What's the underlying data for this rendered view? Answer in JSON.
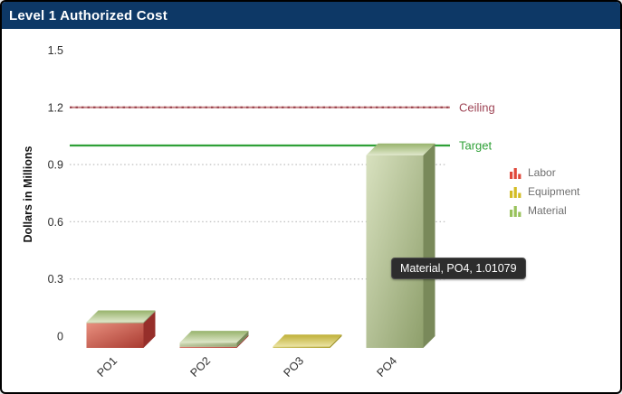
{
  "window": {
    "title": "Level 1 Authorized Cost"
  },
  "theme": {
    "header_bg": "#0D3866",
    "header_fg": "#FFFFFF",
    "background": "#FFFFFF",
    "grid_color": "#BFBFBF",
    "tick_color": "#2E2E2E",
    "axis_title_color": "#111111"
  },
  "chart_data": {
    "type": "bar",
    "subtype": "3d-stacked-column",
    "title": "Level 1 Authorized Cost",
    "xlabel": "",
    "ylabel": "Dollars in Millions",
    "categories": [
      "PO1",
      "PO2",
      "PO3",
      "PO4"
    ],
    "series": [
      {
        "name": "Labor",
        "values": [
          0.13,
          0.006,
          0,
          0
        ],
        "colors": {
          "front_light": "#E8907F",
          "front_dark": "#A93A30",
          "top_light": "#F0B0A0",
          "top_dark": "#C05A50",
          "side": "#962F2A",
          "legend": "#E0483B"
        }
      },
      {
        "name": "Equipment",
        "values": [
          0,
          0,
          0.008,
          0
        ],
        "colors": {
          "front_light": "#E4DA85",
          "front_dark": "#A89A25",
          "top_light": "#EBE3A2",
          "top_dark": "#BFB037",
          "side": "#9C8F22",
          "legend": "#D3BC24"
        }
      },
      {
        "name": "Material",
        "values": [
          0.005,
          0.022,
          0,
          1.01079
        ],
        "colors": {
          "front_light": "#D8E1BF",
          "front_dark": "#8E9F6B",
          "top_light": "#DFE7CA",
          "top_dark": "#97B36C",
          "side": "#79895A",
          "legend": "#98C25B"
        }
      }
    ],
    "ylim": [
      0,
      1.5
    ],
    "yticks": [
      0,
      0.3,
      0.6,
      0.9,
      1.2,
      1.5
    ],
    "gridlines": [
      0.3,
      0.6,
      0.9
    ],
    "grid_style": "dotted",
    "legend_position": "right",
    "reference_lines": [
      {
        "label": "Ceiling",
        "value": 1.2,
        "style": "dashed",
        "line_color": "#C9898C",
        "dash_color": "#9A4550",
        "label_color": "#9E4455"
      },
      {
        "label": "Target",
        "value": 1.0,
        "style": "solid",
        "line_color": "#2FA037",
        "dash_color": "",
        "label_color": "#2FA037"
      }
    ]
  },
  "legend": {
    "text_color": "#6F6F6F",
    "items": [
      {
        "label": "Labor",
        "color": "#E0483B"
      },
      {
        "label": "Equipment",
        "color": "#D3BC24"
      },
      {
        "label": "Material",
        "color": "#98C25B"
      }
    ]
  },
  "tooltip": {
    "text": "Material, PO4, 1.01079",
    "bg": "#2D2D2D",
    "fg": "#FFFFFF"
  }
}
